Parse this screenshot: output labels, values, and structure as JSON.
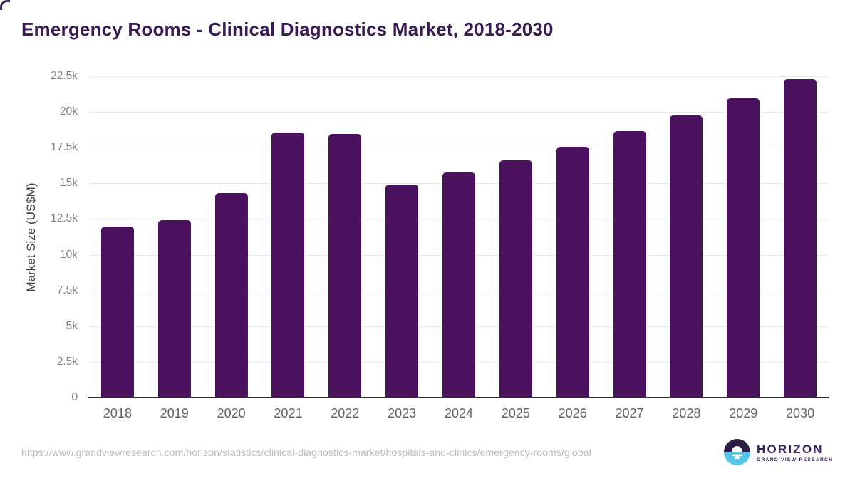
{
  "page": {
    "source_url": "https://www.grandviewresearch.com/horizon/statistics/clinical-diagnostics-market/hospitals-and-clinics/emergency-rooms/global"
  },
  "logo": {
    "name": "HORIZON",
    "subtitle": "GRAND VIEW RESEARCH",
    "mark_top_color": "#2b1c46",
    "mark_bottom_color": "#56c5ea"
  },
  "colors": {
    "bar": "#4a115f",
    "title": "#3a1a52",
    "gridline": "#e8e8e8",
    "axis_line": "#2d2d2d",
    "ytick_text": "#818181",
    "xtick_text": "#616161",
    "url_text": "#bcbcbc"
  },
  "chart_data": {
    "type": "bar",
    "title": "Emergency Rooms - Clinical Diagnostics Market, 2018-2030",
    "xlabel": "",
    "ylabel": "Market Size (US$M)",
    "ylim": [
      0,
      22500
    ],
    "ytick_step": 2500,
    "ytick_labels": [
      "0",
      "2.5k",
      "5k",
      "7.5k",
      "10k",
      "12.5k",
      "15k",
      "17.5k",
      "20k",
      "22.5k"
    ],
    "grid": true,
    "legend": false,
    "categories": [
      "2018",
      "2019",
      "2020",
      "2021",
      "2022",
      "2023",
      "2024",
      "2025",
      "2026",
      "2027",
      "2028",
      "2029",
      "2030"
    ],
    "values": [
      11950,
      12400,
      14300,
      18550,
      18450,
      14900,
      15750,
      16600,
      17550,
      18650,
      19750,
      20950,
      22300
    ],
    "bar_color": "#4a115f"
  }
}
